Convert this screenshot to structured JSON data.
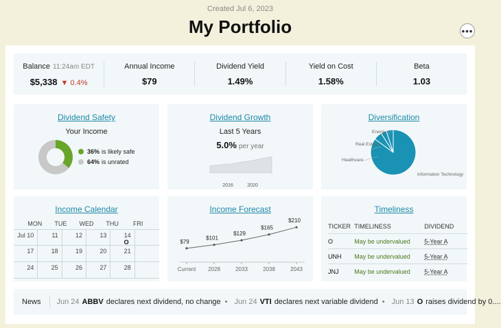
{
  "header": {
    "created": "Created Jul 6, 2023",
    "title": "My Portfolio",
    "more_label": "•••"
  },
  "stats": {
    "balance": {
      "label": "Balance",
      "time": "11:24am EDT",
      "value": "$5,338",
      "change": "▼ 0.4%"
    },
    "annual_income": {
      "label": "Annual Income",
      "value": "$79"
    },
    "dividend_yield": {
      "label": "Dividend Yield",
      "value": "1.49%"
    },
    "yield_on_cost": {
      "label": "Yield on Cost",
      "value": "1.58%"
    },
    "beta": {
      "label": "Beta",
      "value": "1.03"
    }
  },
  "colors": {
    "accent": "#1b8aa8",
    "safe_green": "#6aa52b",
    "unrated_gray": "#c8c8c8",
    "loss_red": "#c23a2e"
  },
  "dividend_safety": {
    "title": "Dividend Safety",
    "subtitle": "Your Income",
    "legend": [
      {
        "pct": "36%",
        "text": "is likely safe",
        "value": 36
      },
      {
        "pct": "64%",
        "text": "is unrated",
        "value": 64
      }
    ]
  },
  "dividend_growth": {
    "title": "Dividend Growth",
    "subtitle": "Last 5 Years",
    "value": "5.0%",
    "unit": "per year",
    "ticks": [
      "2016",
      "2020"
    ],
    "chart_data": {
      "type": "area",
      "x": [
        2015,
        2016,
        2017,
        2018,
        2019,
        2020,
        2021
      ],
      "values": [
        1.0,
        1.03,
        1.05,
        1.1,
        1.14,
        1.2,
        1.26
      ]
    }
  },
  "diversification": {
    "title": "Diversification",
    "labels": [
      "Energy",
      "Real Estate",
      "Healthcare",
      "Information Technology"
    ],
    "chart_data": {
      "type": "pie",
      "categories": [
        "Information Technology",
        "Healthcare",
        "Real Estate",
        "Energy"
      ],
      "values": [
        85,
        6,
        4,
        5
      ]
    }
  },
  "income_calendar": {
    "title": "Income Calendar",
    "days": [
      "MON",
      "TUE",
      "WED",
      "THU",
      "FRI"
    ],
    "rows": [
      [
        "Jul 10",
        "11",
        "12",
        "13",
        "14"
      ],
      [
        "17",
        "18",
        "19",
        "20",
        "21"
      ],
      [
        "24",
        "25",
        "26",
        "27",
        "28"
      ]
    ],
    "badge": {
      "row": 0,
      "col": 4,
      "text": "O"
    }
  },
  "income_forecast": {
    "title": "Income Forecast",
    "chart_data": {
      "type": "line",
      "categories": [
        "Current",
        "2028",
        "2033",
        "2038",
        "2043"
      ],
      "values": [
        79,
        101,
        129,
        165,
        210
      ],
      "labels": [
        "$79",
        "$101",
        "$129",
        "$165",
        "$210"
      ]
    }
  },
  "timeliness": {
    "title": "Timeliness",
    "headers": [
      "TICKER",
      "TIMELINESS",
      "DIVIDEND"
    ],
    "rows": [
      {
        "ticker": "O",
        "status": "May be undervalued",
        "dividend": "5-Year A"
      },
      {
        "ticker": "UNH",
        "status": "May be undervalued",
        "dividend": "5-Year A"
      },
      {
        "ticker": "JNJ",
        "status": "May be undervalued",
        "dividend": "5-Year A"
      }
    ]
  },
  "news": {
    "label": "News",
    "items": [
      {
        "date": "Jun 24",
        "ticker": "ABBV",
        "text": "declares next dividend, no change"
      },
      {
        "date": "Jun 24",
        "ticker": "VTI",
        "text": "declares next variable dividend"
      },
      {
        "date": "Jun 13",
        "ticker": "O",
        "text": "raises dividend by 0...."
      }
    ]
  }
}
